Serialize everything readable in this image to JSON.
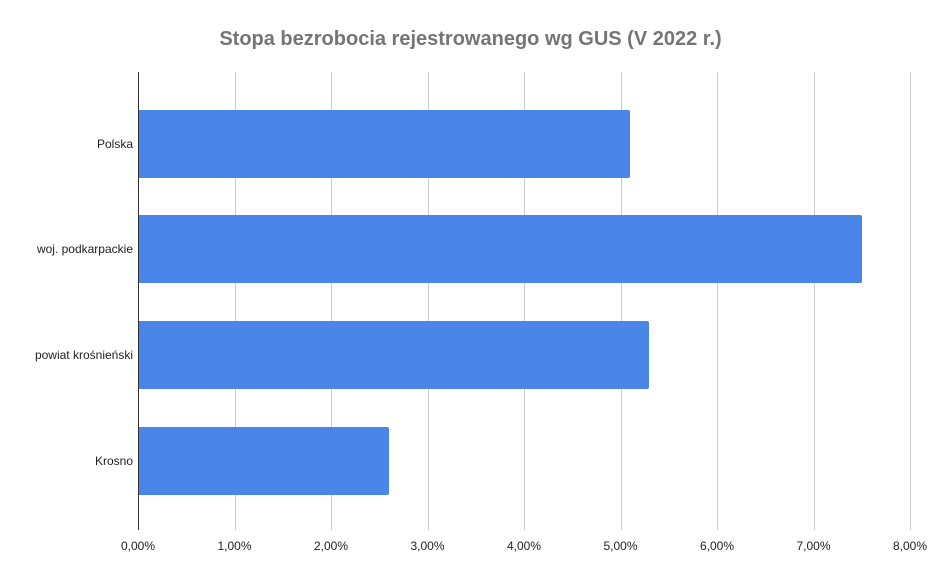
{
  "chart_data": {
    "type": "bar",
    "orientation": "horizontal",
    "title": "Stopa bezrobocia rejestrowanego wg GUS (V 2022 r.)",
    "categories": [
      "Polska",
      "woj. podkarpackie",
      "powiat krośnieński",
      "Krosno"
    ],
    "values": [
      5.1,
      7.5,
      5.3,
      2.6
    ],
    "unit": "%",
    "xlabel": "",
    "ylabel": "",
    "xlim": [
      0,
      8
    ],
    "x_ticks": [
      "0,00%",
      "1,00%",
      "2,00%",
      "3,00%",
      "4,00%",
      "5,00%",
      "6,00%",
      "7,00%",
      "8,00%"
    ],
    "grid": true,
    "legend": "none",
    "bar_color": "#4a86e8"
  }
}
